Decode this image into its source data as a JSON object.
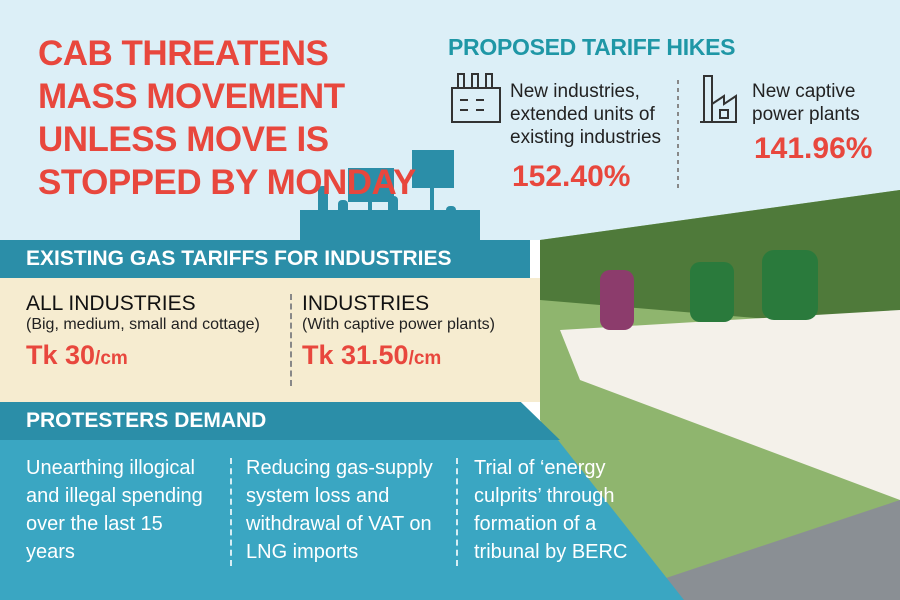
{
  "headline": "CAB THREATENS MASS MOVEMENT UNLESS MOVE IS STOPPED BY MONDAY",
  "proposed": {
    "title": "PROPOSED TARIFF HIKES",
    "items": [
      {
        "label": "New industries, extended units of existing industries",
        "value": "152.40%"
      },
      {
        "label": "New captive power plants",
        "value": "141.96%"
      }
    ]
  },
  "existing": {
    "title": "EXISTING GAS TARIFFS FOR INDUSTRIES",
    "items": [
      {
        "name": "ALL INDUSTRIES",
        "note": "(Big, medium, small and cottage)",
        "price": "Tk 30",
        "unit": "/cm"
      },
      {
        "name": "INDUSTRIES",
        "note": "(With captive power plants)",
        "price": "Tk 31.50",
        "unit": "/cm"
      }
    ]
  },
  "demands": {
    "title": "PROTESTERS DEMAND",
    "items": [
      "Unearthing illogical and illegal spending over the last 15 years",
      "Reducing gas-supply system loss and withdrawal of VAT on LNG imports",
      "Trial of ‘energy culprits’ through formation of a tribunal by BERC"
    ]
  }
}
